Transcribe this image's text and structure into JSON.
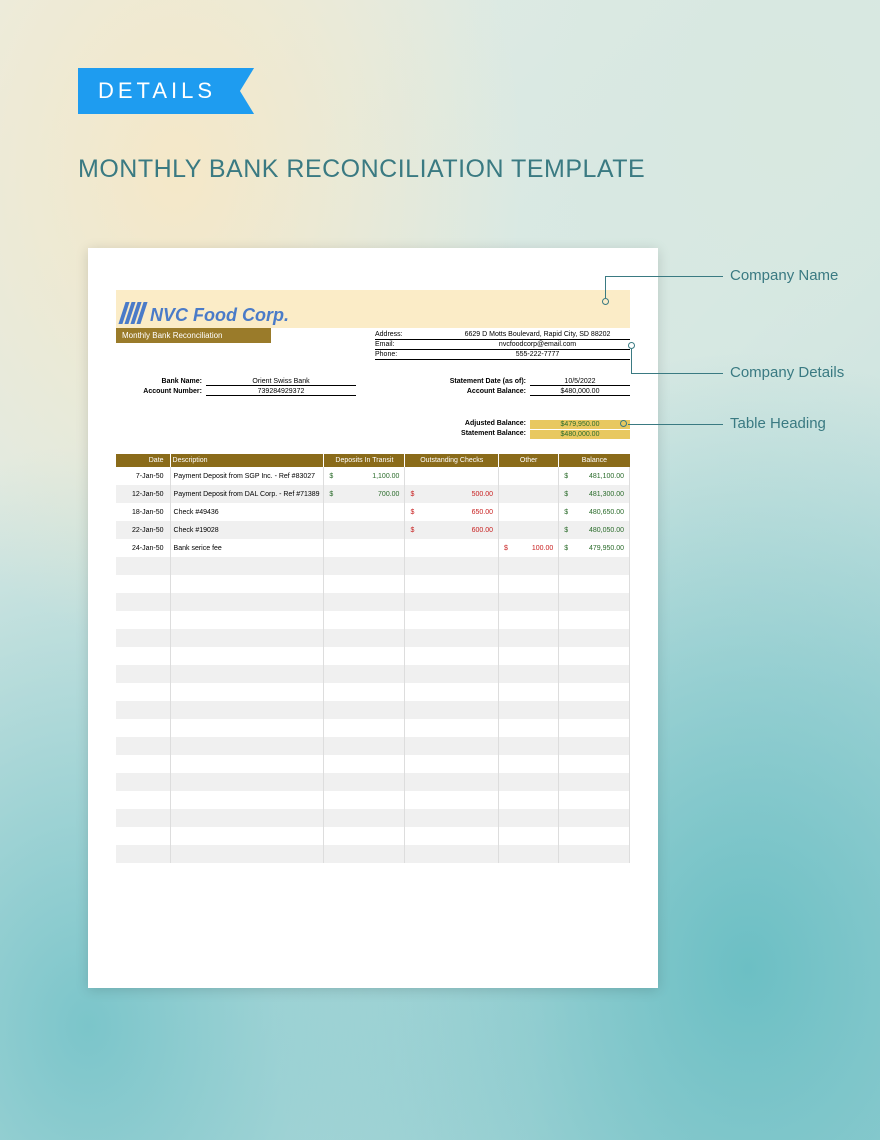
{
  "ribbon": "DETAILS",
  "page_title": "MONTHLY BANK RECONCILIATION TEMPLATE",
  "company": {
    "name": "NVC Food Corp.",
    "subtitle": "Monthly Bank Reconciliation",
    "address_label": "Address:",
    "address": "6629 D Motts Boulevard, Rapid City, SD 88202",
    "email_label": "Email:",
    "email": "nvcfoodcorp@email.com",
    "phone_label": "Phone:",
    "phone": "555-222-7777"
  },
  "account": {
    "bank_label": "Bank Name:",
    "bank": "Orient Swiss Bank",
    "number_label": "Account Number:",
    "number": "739284929372",
    "stmt_date_label": "Statement Date (as of):",
    "stmt_date": "10/5/2022",
    "acct_bal_label": "Account Balance:",
    "acct_bal": "$480,000.00"
  },
  "balances": {
    "adjusted_label": "Adjusted Balance:",
    "adjusted": "$479,950.00",
    "statement_label": "Statement Balance:",
    "statement": "$480,000.00"
  },
  "table": {
    "headers": [
      "Date",
      "Description",
      "Deposits In Transit",
      "Outstanding Checks",
      "Other",
      "Balance"
    ],
    "rows": [
      {
        "date": "7-Jan-50",
        "desc": "Payment Deposit from SGP Inc. - Ref #83027",
        "dep": "1,100.00",
        "out": "",
        "oth": "",
        "bal": "481,100.00"
      },
      {
        "date": "12-Jan-50",
        "desc": "Payment Deposit from DAL Corp. - Ref #71389",
        "dep": "700.00",
        "out": "500.00",
        "oth": "",
        "bal": "481,300.00"
      },
      {
        "date": "18-Jan-50",
        "desc": "Check #49436",
        "dep": "",
        "out": "650.00",
        "oth": "",
        "bal": "480,650.00"
      },
      {
        "date": "22-Jan-50",
        "desc": "Check #19028",
        "dep": "",
        "out": "600.00",
        "oth": "",
        "bal": "480,050.00"
      },
      {
        "date": "24-Jan-50",
        "desc": "Bank serice fee",
        "dep": "",
        "out": "",
        "oth": "100.00",
        "bal": "479,950.00"
      }
    ],
    "empty_rows": 17,
    "colors": {
      "header_bg": "#8a6b1a",
      "header_fg": "#ffffff",
      "deposit_color": "#2a6b2a",
      "debit_color": "#c82020",
      "balance_color": "#2a6b2a",
      "row_alt_bg": "#f0f0f0"
    }
  },
  "callouts": {
    "c1": "Company Name",
    "c2": "Company Details",
    "c3": "Table Heading"
  },
  "colors": {
    "ribbon_bg": "#1e9cf0",
    "title_color": "#3a7a82",
    "banner_bg": "#fbecc7",
    "sub_banner_bg": "#9a7b2a",
    "logo_color": "#4a7bc8",
    "highlight_bg": "#e8c860",
    "callout_color": "#3a7a82"
  }
}
